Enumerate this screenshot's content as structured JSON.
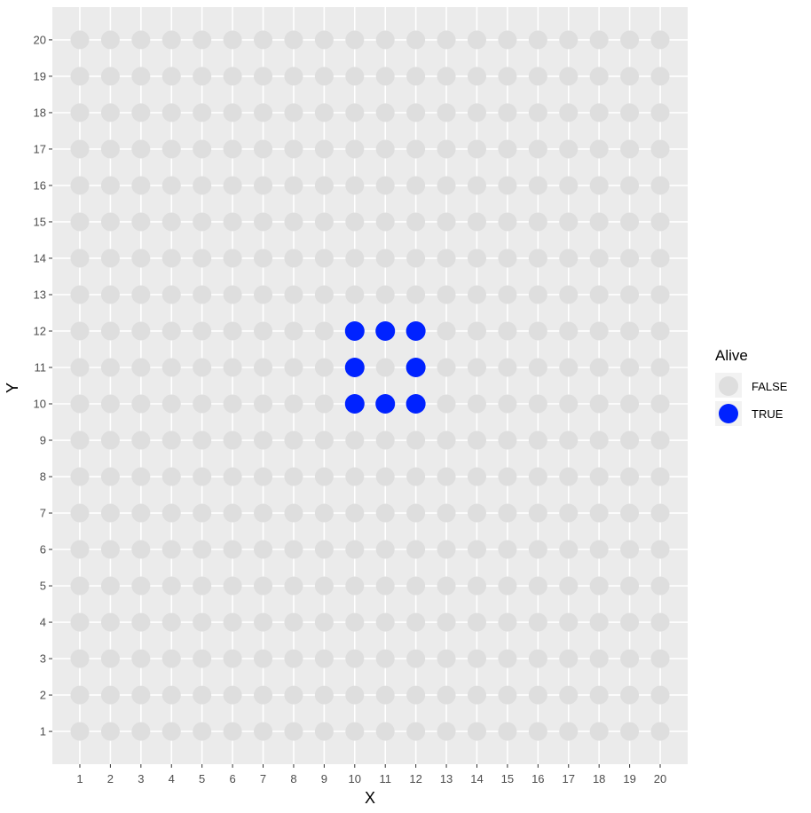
{
  "chart_data": {
    "type": "scatter",
    "title": "",
    "xlabel": "X",
    "ylabel": "Y",
    "xlim": [
      0.1,
      20.9
    ],
    "ylim": [
      0.1,
      20.9
    ],
    "x_ticks": [
      1,
      2,
      3,
      4,
      5,
      6,
      7,
      8,
      9,
      10,
      11,
      12,
      13,
      14,
      15,
      16,
      17,
      18,
      19,
      20
    ],
    "y_ticks": [
      1,
      2,
      3,
      4,
      5,
      6,
      7,
      8,
      9,
      10,
      11,
      12,
      13,
      14,
      15,
      16,
      17,
      18,
      19,
      20
    ],
    "grid": true,
    "grid_x": [
      1,
      20
    ],
    "grid_y": [
      1,
      20
    ],
    "alive_cells": [
      [
        10,
        10
      ],
      [
        11,
        10
      ],
      [
        12,
        10
      ],
      [
        10,
        11
      ],
      [
        12,
        11
      ],
      [
        10,
        12
      ],
      [
        11,
        12
      ],
      [
        12,
        12
      ]
    ],
    "legend": {
      "title": "Alive",
      "position": "right",
      "entries": [
        {
          "label": "FALSE",
          "color": "#dedede"
        },
        {
          "label": "TRUE",
          "color": "#0022ff"
        }
      ]
    },
    "colors": {
      "panel_background": "#ebebeb",
      "grid_line": "#ffffff",
      "dead": "#dedede",
      "alive": "#0022ff"
    }
  }
}
